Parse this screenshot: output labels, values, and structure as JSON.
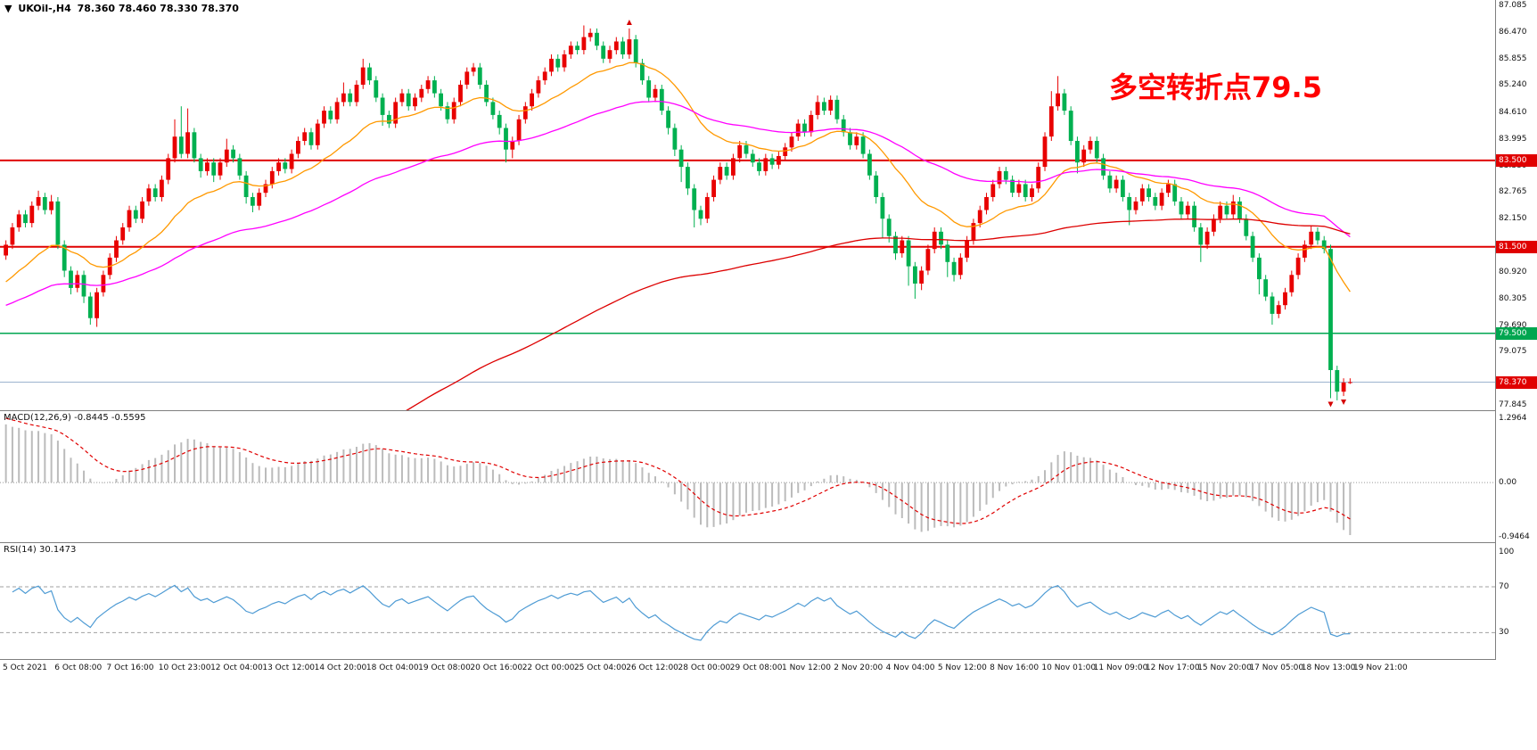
{
  "header": {
    "icon": "▼",
    "symbol": "UKOil-,H4",
    "ohlc": "78.360 78.460 78.330 78.370"
  },
  "annotation": {
    "text": "多空转折点79.5",
    "color": "#FF0000"
  },
  "price_axis": {
    "labels": [
      "87.085",
      "86.470",
      "85.855",
      "85.240",
      "84.610",
      "83.995",
      "83.380",
      "82.765",
      "82.150",
      "80.920",
      "80.305",
      "79.690",
      "79.075",
      "77.845"
    ]
  },
  "macd": {
    "label": "MACD(12,26,9) -0.8445 -0.5595",
    "axis": [
      "1.2964",
      "0.00",
      "-0.9464"
    ],
    "signal_color": "#E00000",
    "hist_color": "#BBBBBB"
  },
  "rsi": {
    "label": "RSI(14) 30.1473",
    "axis": [
      "100",
      "70",
      "30"
    ],
    "levels": [
      70,
      30
    ],
    "line_color": "#4E9BD4"
  },
  "chart_data": {
    "type": "candlestick",
    "symbol": "UKOil-",
    "timeframe": "H4",
    "price_range": [
      77.845,
      87.085
    ],
    "up_color": "#E80000",
    "down_color": "#00B050",
    "indicators": [
      {
        "name": "MACD",
        "params": [
          12,
          26,
          9
        ],
        "values": [
          -0.8445,
          -0.5595
        ]
      },
      {
        "name": "RSI",
        "params": [
          14
        ],
        "values": [
          30.1473
        ]
      }
    ],
    "moving_averages": [
      {
        "name": "ma-fast-orange",
        "color": "#FF9900",
        "period": 20,
        "seed": 80.6
      },
      {
        "name": "ma-medium-magenta",
        "color": "#FF00FF",
        "period": 60,
        "seed": 80.1
      },
      {
        "name": "ma-slow-red",
        "color": "#DD0000",
        "period": 160,
        "seed": 71.0
      }
    ],
    "hlines": [
      {
        "price": 83.5,
        "label": "83.500",
        "color": "#E00000",
        "width": 2
      },
      {
        "price": 81.5,
        "label": "81.500",
        "color": "#E00000",
        "width": 2
      },
      {
        "price": 79.5,
        "label": "79.500",
        "color": "#00A650",
        "width": 1.6
      },
      {
        "price": 78.37,
        "label": "78.370",
        "color": "#9CB3CE",
        "badge_color": "#E00000",
        "width": 1
      }
    ],
    "markers": [
      {
        "bar": 96,
        "pos": "above"
      },
      {
        "bar": 204,
        "pos": "below"
      },
      {
        "bar": 206,
        "pos": "below"
      }
    ],
    "time_labels": [
      "5 Oct 2021",
      "6 Oct 08:00",
      "7 Oct 16:00",
      "10 Oct 23:00",
      "12 Oct 04:00",
      "13 Oct 12:00",
      "14 Oct 20:00",
      "18 Oct 04:00",
      "19 Oct 08:00",
      "20 Oct 16:00",
      "22 Oct 00:00",
      "25 Oct 04:00",
      "26 Oct 12:00",
      "28 Oct 00:00",
      "29 Oct 08:00",
      "1 Nov 12:00",
      "2 Nov 20:00",
      "4 Nov 04:00",
      "5 Nov 12:00",
      "8 Nov 16:00",
      "10 Nov 01:00",
      "11 Nov 09:00",
      "12 Nov 17:00",
      "15 Nov 20:00",
      "17 Nov 05:00",
      "18 Nov 13:00",
      "19 Nov 21:00"
    ],
    "candles": [
      [
        81.3,
        81.65,
        81.2,
        81.55
      ],
      [
        81.55,
        82.05,
        81.45,
        81.95
      ],
      [
        81.95,
        82.35,
        81.85,
        82.25
      ],
      [
        82.25,
        82.35,
        81.95,
        82.05
      ],
      [
        82.05,
        82.55,
        81.95,
        82.45
      ],
      [
        82.45,
        82.8,
        82.35,
        82.65
      ],
      [
        82.65,
        82.75,
        82.25,
        82.35
      ],
      [
        82.35,
        82.7,
        82.25,
        82.55
      ],
      [
        82.55,
        82.65,
        81.45,
        81.55
      ],
      [
        81.55,
        81.65,
        80.8,
        80.95
      ],
      [
        80.95,
        81.05,
        80.4,
        80.55
      ],
      [
        80.55,
        80.95,
        80.45,
        80.85
      ],
      [
        80.85,
        80.95,
        80.2,
        80.35
      ],
      [
        80.35,
        80.45,
        79.7,
        79.85
      ],
      [
        79.85,
        80.55,
        79.65,
        80.45
      ],
      [
        80.45,
        80.95,
        80.35,
        80.85
      ],
      [
        80.85,
        81.35,
        80.75,
        81.25
      ],
      [
        81.25,
        81.75,
        81.15,
        81.65
      ],
      [
        81.65,
        82.05,
        81.55,
        81.95
      ],
      [
        81.95,
        82.45,
        81.85,
        82.35
      ],
      [
        82.35,
        82.45,
        82.05,
        82.15
      ],
      [
        82.15,
        82.65,
        82.05,
        82.55
      ],
      [
        82.55,
        82.95,
        82.45,
        82.85
      ],
      [
        82.85,
        82.95,
        82.55,
        82.65
      ],
      [
        82.65,
        83.15,
        82.55,
        83.05
      ],
      [
        83.05,
        83.65,
        82.95,
        83.55
      ],
      [
        83.55,
        84.45,
        83.45,
        84.05
      ],
      [
        84.05,
        84.75,
        83.55,
        83.65
      ],
      [
        83.65,
        84.7,
        83.55,
        84.15
      ],
      [
        84.15,
        84.25,
        83.45,
        83.55
      ],
      [
        83.55,
        83.65,
        83.1,
        83.25
      ],
      [
        83.25,
        83.55,
        83.15,
        83.45
      ],
      [
        83.45,
        83.55,
        83.0,
        83.15
      ],
      [
        83.15,
        83.55,
        83.05,
        83.45
      ],
      [
        83.45,
        84.0,
        83.35,
        83.75
      ],
      [
        83.75,
        83.85,
        83.45,
        83.55
      ],
      [
        83.55,
        83.65,
        83.05,
        83.15
      ],
      [
        83.15,
        83.25,
        82.5,
        82.65
      ],
      [
        82.65,
        82.75,
        82.3,
        82.45
      ],
      [
        82.45,
        82.85,
        82.35,
        82.75
      ],
      [
        82.75,
        83.05,
        82.65,
        82.95
      ],
      [
        82.95,
        83.35,
        82.85,
        83.25
      ],
      [
        83.25,
        83.55,
        83.15,
        83.45
      ],
      [
        83.45,
        83.55,
        83.2,
        83.3
      ],
      [
        83.3,
        83.75,
        83.2,
        83.65
      ],
      [
        83.65,
        84.05,
        83.55,
        83.95
      ],
      [
        83.95,
        84.25,
        83.85,
        84.15
      ],
      [
        84.15,
        84.25,
        83.75,
        83.85
      ],
      [
        83.85,
        84.45,
        83.75,
        84.35
      ],
      [
        84.35,
        84.75,
        84.25,
        84.65
      ],
      [
        84.65,
        84.75,
        84.35,
        84.45
      ],
      [
        84.45,
        84.95,
        84.35,
        84.85
      ],
      [
        84.85,
        85.3,
        84.75,
        85.05
      ],
      [
        85.05,
        85.15,
        84.75,
        84.85
      ],
      [
        84.85,
        85.35,
        84.75,
        85.25
      ],
      [
        85.25,
        85.85,
        85.15,
        85.65
      ],
      [
        85.65,
        85.75,
        85.25,
        85.35
      ],
      [
        85.35,
        85.45,
        84.85,
        84.95
      ],
      [
        84.95,
        85.05,
        84.3,
        84.55
      ],
      [
        84.55,
        84.65,
        84.25,
        84.35
      ],
      [
        84.35,
        84.95,
        84.25,
        84.85
      ],
      [
        84.85,
        85.15,
        84.75,
        85.05
      ],
      [
        85.05,
        85.15,
        84.65,
        84.75
      ],
      [
        84.75,
        85.05,
        84.65,
        84.95
      ],
      [
        84.95,
        85.25,
        84.85,
        85.15
      ],
      [
        85.15,
        85.45,
        85.05,
        85.35
      ],
      [
        85.35,
        85.45,
        84.95,
        85.05
      ],
      [
        85.05,
        85.15,
        84.65,
        84.75
      ],
      [
        84.75,
        84.85,
        84.35,
        84.45
      ],
      [
        84.45,
        84.95,
        84.35,
        84.85
      ],
      [
        84.85,
        85.35,
        84.75,
        85.25
      ],
      [
        85.25,
        85.65,
        85.15,
        85.55
      ],
      [
        85.55,
        85.75,
        85.45,
        85.65
      ],
      [
        85.65,
        85.75,
        85.15,
        85.25
      ],
      [
        85.25,
        85.35,
        84.75,
        84.85
      ],
      [
        84.85,
        84.95,
        84.45,
        84.55
      ],
      [
        84.55,
        84.65,
        84.1,
        84.25
      ],
      [
        84.25,
        84.35,
        83.45,
        83.75
      ],
      [
        83.75,
        84.05,
        83.55,
        83.95
      ],
      [
        83.95,
        84.55,
        83.85,
        84.45
      ],
      [
        84.45,
        84.85,
        84.35,
        84.75
      ],
      [
        84.75,
        85.15,
        84.65,
        85.05
      ],
      [
        85.05,
        85.45,
        84.95,
        85.35
      ],
      [
        85.35,
        85.65,
        85.25,
        85.55
      ],
      [
        85.55,
        85.95,
        85.45,
        85.85
      ],
      [
        85.85,
        85.95,
        85.55,
        85.65
      ],
      [
        85.65,
        86.05,
        85.55,
        85.95
      ],
      [
        85.95,
        86.25,
        85.85,
        86.15
      ],
      [
        86.15,
        86.25,
        85.95,
        86.05
      ],
      [
        86.05,
        86.62,
        85.95,
        86.35
      ],
      [
        86.35,
        86.55,
        86.25,
        86.45
      ],
      [
        86.45,
        86.55,
        86.05,
        86.15
      ],
      [
        86.15,
        86.25,
        85.75,
        85.85
      ],
      [
        85.85,
        86.15,
        85.75,
        86.05
      ],
      [
        86.05,
        86.35,
        85.95,
        86.25
      ],
      [
        86.25,
        86.35,
        85.85,
        85.95
      ],
      [
        85.95,
        86.55,
        85.85,
        86.3
      ],
      [
        86.3,
        86.4,
        85.65,
        85.75
      ],
      [
        85.75,
        85.85,
        85.25,
        85.35
      ],
      [
        85.35,
        85.45,
        84.85,
        84.95
      ],
      [
        84.95,
        85.25,
        84.85,
        85.15
      ],
      [
        85.15,
        85.25,
        84.55,
        84.65
      ],
      [
        84.65,
        84.75,
        84.1,
        84.25
      ],
      [
        84.25,
        84.35,
        83.6,
        83.75
      ],
      [
        83.75,
        83.85,
        83.0,
        83.35
      ],
      [
        83.35,
        83.45,
        82.7,
        82.85
      ],
      [
        82.85,
        82.95,
        81.95,
        82.35
      ],
      [
        82.35,
        82.45,
        82.0,
        82.15
      ],
      [
        82.15,
        82.75,
        82.05,
        82.65
      ],
      [
        82.65,
        83.15,
        82.55,
        83.05
      ],
      [
        83.05,
        83.45,
        82.95,
        83.35
      ],
      [
        83.35,
        83.45,
        83.05,
        83.15
      ],
      [
        83.15,
        83.65,
        83.05,
        83.55
      ],
      [
        83.55,
        83.95,
        83.45,
        83.85
      ],
      [
        83.85,
        83.95,
        83.55,
        83.65
      ],
      [
        83.65,
        83.75,
        83.35,
        83.45
      ],
      [
        83.45,
        83.55,
        83.15,
        83.25
      ],
      [
        83.25,
        83.65,
        83.15,
        83.55
      ],
      [
        83.55,
        83.65,
        83.3,
        83.4
      ],
      [
        83.4,
        83.7,
        83.3,
        83.6
      ],
      [
        83.6,
        83.9,
        83.5,
        83.8
      ],
      [
        83.8,
        84.15,
        83.7,
        84.05
      ],
      [
        84.05,
        84.45,
        83.95,
        84.35
      ],
      [
        84.35,
        84.45,
        84.05,
        84.15
      ],
      [
        84.15,
        84.65,
        84.05,
        84.55
      ],
      [
        84.55,
        85.0,
        84.45,
        84.85
      ],
      [
        84.85,
        84.95,
        84.55,
        84.65
      ],
      [
        84.65,
        85.0,
        84.55,
        84.9
      ],
      [
        84.9,
        85.0,
        84.35,
        84.45
      ],
      [
        84.45,
        84.55,
        84.05,
        84.15
      ],
      [
        84.15,
        84.25,
        83.75,
        83.85
      ],
      [
        83.85,
        84.15,
        83.75,
        84.05
      ],
      [
        84.05,
        84.15,
        83.55,
        83.65
      ],
      [
        83.65,
        83.75,
        83.05,
        83.15
      ],
      [
        83.15,
        83.25,
        82.5,
        82.65
      ],
      [
        82.65,
        82.75,
        81.7,
        82.15
      ],
      [
        82.15,
        82.25,
        81.6,
        81.75
      ],
      [
        81.75,
        81.85,
        81.2,
        81.35
      ],
      [
        81.35,
        81.75,
        81.25,
        81.65
      ],
      [
        81.65,
        81.75,
        80.6,
        81.05
      ],
      [
        81.05,
        81.15,
        80.3,
        80.65
      ],
      [
        80.65,
        81.05,
        80.5,
        80.95
      ],
      [
        80.95,
        81.55,
        80.85,
        81.45
      ],
      [
        81.45,
        81.95,
        81.35,
        81.85
      ],
      [
        81.85,
        81.95,
        81.45,
        81.55
      ],
      [
        81.55,
        81.65,
        80.8,
        81.15
      ],
      [
        81.15,
        81.25,
        80.7,
        80.85
      ],
      [
        80.85,
        81.35,
        80.75,
        81.25
      ],
      [
        81.25,
        81.75,
        81.15,
        81.65
      ],
      [
        81.65,
        82.15,
        81.55,
        82.05
      ],
      [
        82.05,
        82.45,
        81.95,
        82.35
      ],
      [
        82.35,
        82.75,
        82.25,
        82.65
      ],
      [
        82.65,
        83.05,
        82.55,
        82.95
      ],
      [
        82.95,
        83.35,
        82.85,
        83.25
      ],
      [
        83.25,
        83.35,
        82.95,
        83.05
      ],
      [
        83.05,
        83.15,
        82.65,
        82.75
      ],
      [
        82.75,
        83.05,
        82.65,
        82.95
      ],
      [
        82.95,
        83.05,
        82.55,
        82.65
      ],
      [
        82.65,
        82.95,
        82.55,
        82.85
      ],
      [
        82.85,
        83.45,
        82.75,
        83.35
      ],
      [
        83.35,
        84.15,
        83.25,
        84.05
      ],
      [
        84.05,
        85.1,
        83.95,
        84.75
      ],
      [
        84.75,
        85.45,
        84.65,
        85.05
      ],
      [
        85.05,
        85.15,
        84.55,
        84.65
      ],
      [
        84.65,
        84.75,
        83.85,
        83.95
      ],
      [
        83.95,
        84.05,
        83.2,
        83.45
      ],
      [
        83.45,
        83.85,
        83.35,
        83.75
      ],
      [
        83.75,
        84.05,
        83.65,
        83.95
      ],
      [
        83.95,
        84.05,
        83.45,
        83.55
      ],
      [
        83.55,
        83.65,
        83.05,
        83.15
      ],
      [
        83.15,
        83.25,
        82.75,
        82.85
      ],
      [
        82.85,
        83.15,
        82.75,
        83.05
      ],
      [
        83.05,
        83.15,
        82.55,
        82.65
      ],
      [
        82.65,
        82.75,
        82.0,
        82.35
      ],
      [
        82.35,
        82.65,
        82.25,
        82.55
      ],
      [
        82.55,
        82.95,
        82.45,
        82.85
      ],
      [
        82.85,
        82.95,
        82.55,
        82.65
      ],
      [
        82.65,
        82.75,
        82.35,
        82.45
      ],
      [
        82.45,
        82.85,
        82.35,
        82.75
      ],
      [
        82.75,
        83.05,
        82.65,
        82.95
      ],
      [
        82.95,
        83.05,
        82.45,
        82.55
      ],
      [
        82.55,
        82.65,
        82.15,
        82.25
      ],
      [
        82.25,
        82.55,
        82.15,
        82.45
      ],
      [
        82.45,
        82.55,
        81.85,
        81.95
      ],
      [
        81.95,
        82.05,
        81.15,
        81.55
      ],
      [
        81.55,
        81.95,
        81.45,
        81.85
      ],
      [
        81.85,
        82.25,
        81.75,
        82.15
      ],
      [
        82.15,
        82.55,
        82.05,
        82.45
      ],
      [
        82.45,
        82.55,
        82.15,
        82.25
      ],
      [
        82.25,
        82.7,
        82.15,
        82.55
      ],
      [
        82.55,
        82.65,
        82.05,
        82.15
      ],
      [
        82.15,
        82.25,
        81.65,
        81.75
      ],
      [
        81.75,
        81.85,
        81.15,
        81.25
      ],
      [
        81.25,
        81.35,
        80.4,
        80.75
      ],
      [
        80.75,
        80.85,
        80.25,
        80.35
      ],
      [
        80.35,
        80.45,
        79.7,
        79.95
      ],
      [
        79.95,
        80.25,
        79.85,
        80.15
      ],
      [
        80.15,
        80.55,
        80.05,
        80.45
      ],
      [
        80.45,
        80.95,
        80.35,
        80.85
      ],
      [
        80.85,
        81.35,
        80.75,
        81.25
      ],
      [
        81.25,
        81.65,
        81.15,
        81.55
      ],
      [
        81.55,
        82.0,
        81.45,
        81.85
      ],
      [
        81.85,
        81.95,
        81.55,
        81.65
      ],
      [
        81.65,
        81.75,
        81.35,
        81.45
      ],
      [
        81.45,
        81.55,
        78.0,
        78.65
      ],
      [
        78.65,
        78.75,
        77.95,
        78.15
      ],
      [
        78.15,
        78.46,
        78.05,
        78.36
      ],
      [
        78.36,
        78.46,
        78.33,
        78.37
      ]
    ]
  }
}
